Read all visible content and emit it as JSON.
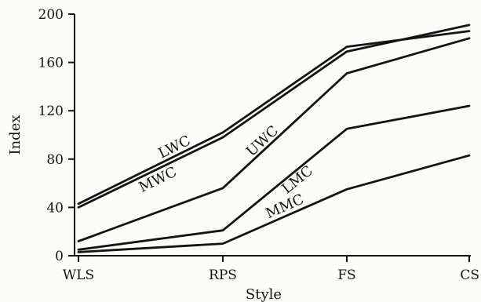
{
  "chart_data": {
    "type": "line",
    "title": "",
    "xlabel": "Style",
    "ylabel": "Index",
    "categories": [
      "WLS",
      "RPS",
      "FS",
      "CS"
    ],
    "ylim": [
      0,
      200
    ],
    "yticks": [
      0,
      40,
      80,
      120,
      160,
      200
    ],
    "grid": false,
    "legend": "none",
    "line_color": "#141414",
    "series": [
      {
        "name": "LWC",
        "values": [
          43,
          102,
          173,
          186
        ]
      },
      {
        "name": "MWC",
        "values": [
          40,
          98,
          169,
          191
        ]
      },
      {
        "name": "UWC",
        "values": [
          12,
          56,
          151,
          180
        ]
      },
      {
        "name": "LMC",
        "values": [
          5,
          21,
          105,
          124
        ]
      },
      {
        "name": "MMC",
        "values": [
          3,
          10,
          55,
          83
        ]
      }
    ]
  }
}
